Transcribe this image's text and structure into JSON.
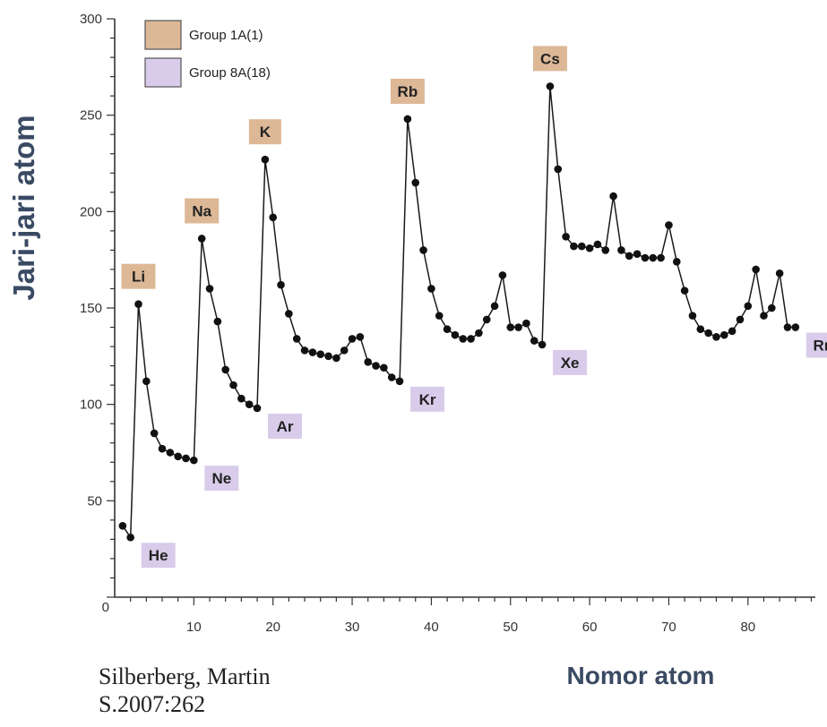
{
  "chart_data": {
    "type": "line",
    "xlabel": "Nomor atom",
    "ylabel": "Jari-jari atom",
    "xlim": [
      0,
      88
    ],
    "ylim": [
      0,
      300
    ],
    "x_ticks": [
      10,
      20,
      30,
      40,
      50,
      60,
      70,
      80
    ],
    "y_ticks": [
      0,
      50,
      100,
      150,
      200,
      250,
      300
    ],
    "grid": false,
    "legend_position": "top-left",
    "legend": [
      {
        "name": "Group 1A(1)",
        "color": "#ddb897"
      },
      {
        "name": "Group 8A(18)",
        "color": "#d8ccea"
      }
    ],
    "series": [
      {
        "x": [
          1,
          2,
          3,
          4,
          5,
          6,
          7,
          8,
          9,
          10,
          11,
          12,
          13,
          14,
          15,
          16,
          17,
          18,
          19,
          20,
          21,
          22,
          23,
          24,
          25,
          26,
          27,
          28,
          29,
          30,
          31,
          32,
          33,
          34,
          35,
          36,
          37,
          38,
          39,
          40,
          41,
          42,
          43,
          44,
          45,
          46,
          47,
          48,
          49,
          50,
          51,
          52,
          53,
          54,
          55,
          56,
          57,
          58,
          59,
          60,
          61,
          62,
          63,
          64,
          65,
          66,
          67,
          68,
          69,
          70,
          71,
          72,
          73,
          74,
          75,
          76,
          77,
          78,
          79,
          80,
          81,
          82,
          83,
          84,
          85,
          86
        ],
        "y": [
          37,
          31,
          152,
          112,
          85,
          77,
          75,
          73,
          72,
          71,
          186,
          160,
          143,
          118,
          110,
          103,
          100,
          98,
          227,
          197,
          162,
          147,
          134,
          128,
          127,
          126,
          125,
          124,
          128,
          134,
          135,
          122,
          120,
          119,
          114,
          112,
          248,
          215,
          180,
          160,
          146,
          139,
          136,
          134,
          134,
          137,
          144,
          151,
          167,
          140,
          140,
          142,
          133,
          131,
          265,
          222,
          187,
          182,
          182,
          181,
          183,
          180,
          208,
          180,
          177,
          178,
          176,
          176,
          176,
          193,
          174,
          159,
          146,
          139,
          137,
          135,
          136,
          138,
          144,
          151,
          170,
          146,
          150,
          168,
          140,
          140
        ]
      }
    ],
    "annotations": [
      {
        "text": "He",
        "x": 2,
        "group": "8A"
      },
      {
        "text": "Ne",
        "x": 10,
        "group": "8A"
      },
      {
        "text": "Ar",
        "x": 18,
        "group": "8A"
      },
      {
        "text": "Kr",
        "x": 36,
        "group": "8A"
      },
      {
        "text": "Xe",
        "x": 54,
        "group": "8A"
      },
      {
        "text": "Rn",
        "x": 86,
        "group": "8A"
      },
      {
        "text": "Li",
        "x": 3,
        "group": "1A"
      },
      {
        "text": "Na",
        "x": 11,
        "group": "1A"
      },
      {
        "text": "K",
        "x": 19,
        "group": "1A"
      },
      {
        "text": "Rb",
        "x": 37,
        "group": "1A"
      },
      {
        "text": "Cs",
        "x": 55,
        "group": "1A"
      }
    ]
  },
  "citation": {
    "line1": "Silberberg, Martin",
    "line2": "S.2007:262"
  }
}
